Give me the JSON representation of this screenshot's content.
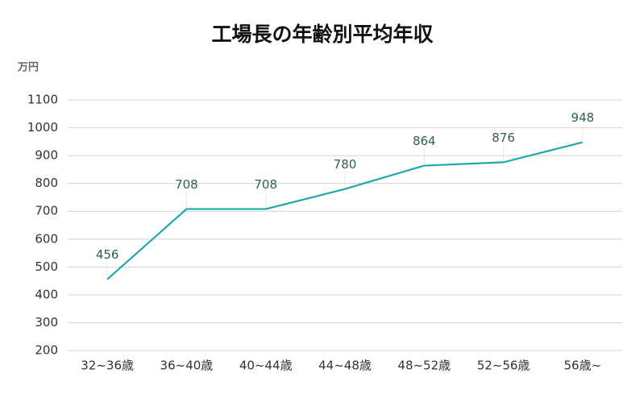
{
  "chart_data": {
    "type": "line",
    "title": "工場長の年齢別平均年収",
    "ylabel": "万円",
    "categories": [
      "32~36歳",
      "36~40歳",
      "40~44歳",
      "44~48歳",
      "48~52歳",
      "52~56歳",
      "56歳~"
    ],
    "values": [
      456,
      708,
      708,
      780,
      864,
      876,
      948
    ],
    "color": "#1ea8a8",
    "ylim": [
      200,
      1100
    ],
    "yticks": [
      200,
      300,
      400,
      500,
      600,
      700,
      800,
      900,
      1000,
      1100
    ],
    "grid": true
  }
}
